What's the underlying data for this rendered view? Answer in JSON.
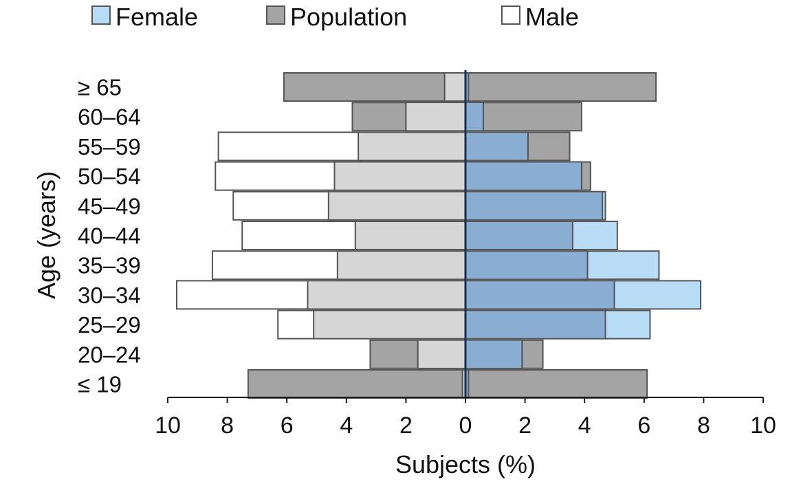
{
  "chart_data": {
    "type": "bar",
    "orientation": "horizontal-butterfly",
    "title": "",
    "xlabel": "Subjects (%)",
    "ylabel": "Age (years)",
    "xlim": [
      -10,
      10
    ],
    "x_ticks": [
      -10,
      -8,
      -6,
      -4,
      -2,
      0,
      2,
      4,
      6,
      8,
      10
    ],
    "x_tick_labels": [
      "10",
      "8",
      "6",
      "4",
      "2",
      "0",
      "2",
      "4",
      "6",
      "8",
      "10"
    ],
    "grid": false,
    "legend_position": "top",
    "categories": [
      "≥ 65",
      "60–64",
      "55–59",
      "50–54",
      "45–49",
      "40–44",
      "35–39",
      "30–34",
      "25–29",
      "20–24",
      "≤ 19"
    ],
    "population": {
      "left": [
        6.1,
        3.8,
        3.6,
        4.4,
        4.6,
        3.7,
        4.3,
        5.3,
        5.1,
        3.2,
        7.3
      ],
      "right": [
        6.4,
        3.9,
        3.5,
        4.2,
        4.6,
        3.6,
        4.1,
        5.0,
        4.7,
        2.6,
        6.1
      ]
    },
    "series": [
      {
        "name": "Female",
        "side": "right",
        "values": [
          0.1,
          0.6,
          2.1,
          3.9,
          4.7,
          5.1,
          6.5,
          7.9,
          6.2,
          1.9,
          0.1
        ]
      },
      {
        "name": "Population",
        "side": "both"
      },
      {
        "name": "Male",
        "side": "left",
        "values": [
          0.7,
          2.0,
          8.3,
          8.4,
          7.8,
          7.5,
          8.5,
          9.7,
          6.3,
          1.6,
          0.1
        ]
      }
    ],
    "colors": {
      "female": "#b9dcf6",
      "male": "#ffffff",
      "population": "#a4a4a4",
      "female_population_overlap": "#8aaed2",
      "male_population_overlap": "#d6d6d6",
      "outline": "#555555",
      "axis": "#1a1a1a",
      "center_line": "#123050"
    }
  }
}
